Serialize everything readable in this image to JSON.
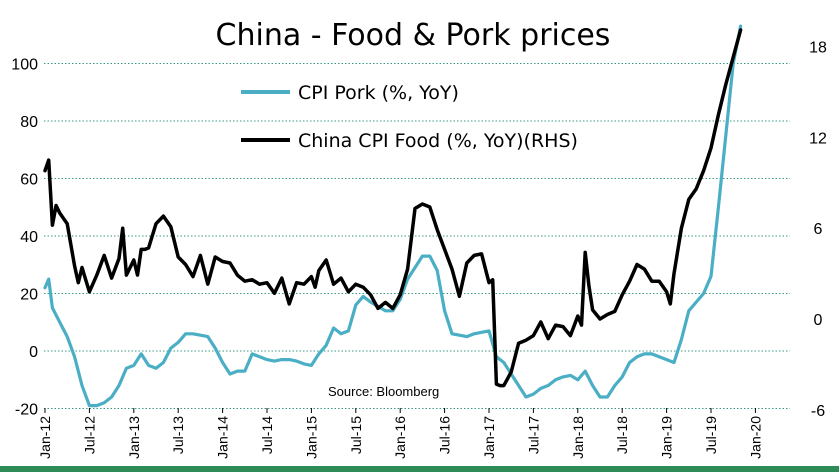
{
  "chart_data": {
    "type": "line",
    "title": "China - Food & Pork prices",
    "source": "Source: Bloomberg",
    "grid": true,
    "bottom_band_color": "#2e8b57",
    "legend": {
      "placement": "top-center",
      "entries": [
        "CPI Pork (%, YoY)",
        "China CPI Food (%, YoY)(RHS)"
      ]
    },
    "x_ticks": [
      "Jan-12",
      "Jul-12",
      "Jan-13",
      "Jul-13",
      "Jan-14",
      "Jul-14",
      "Jan-15",
      "Jul-15",
      "Jan-16",
      "Jul-16",
      "Jan-17",
      "Jul-17",
      "Jan-18",
      "Jul-18",
      "Jan-19",
      "Jul-19",
      "Jan-20"
    ],
    "y_left": {
      "ticks": [
        "-20",
        "0",
        "20",
        "40",
        "60",
        "80",
        "100"
      ],
      "range": [
        -20,
        120
      ]
    },
    "y_right": {
      "ticks": [
        "-6",
        "0",
        "6",
        "12",
        "18"
      ],
      "range": [
        -6,
        19
      ]
    },
    "series": [
      {
        "name": "CPI Pork (%, YoY)",
        "axis": "left",
        "color": "#4aaec4",
        "x": [
          2012.0,
          2012.042,
          2012.083,
          2012.167,
          2012.25,
          2012.333,
          2012.417,
          2012.5,
          2012.583,
          2012.667,
          2012.75,
          2012.833,
          2012.917,
          2013.0,
          2013.083,
          2013.167,
          2013.25,
          2013.333,
          2013.417,
          2013.5,
          2013.583,
          2013.667,
          2013.75,
          2013.833,
          2013.917,
          2014.0,
          2014.083,
          2014.167,
          2014.25,
          2014.333,
          2014.417,
          2014.5,
          2014.583,
          2014.667,
          2014.75,
          2014.833,
          2014.917,
          2015.0,
          2015.083,
          2015.167,
          2015.25,
          2015.333,
          2015.417,
          2015.5,
          2015.583,
          2015.667,
          2015.75,
          2015.833,
          2015.917,
          2016.0,
          2016.083,
          2016.167,
          2016.25,
          2016.333,
          2016.417,
          2016.5,
          2016.583,
          2016.667,
          2016.75,
          2016.833,
          2016.917,
          2017.0,
          2017.083,
          2017.167,
          2017.25,
          2017.333,
          2017.417,
          2017.5,
          2017.583,
          2017.667,
          2017.75,
          2017.833,
          2017.917,
          2018.0,
          2018.083,
          2018.167,
          2018.25,
          2018.333,
          2018.417,
          2018.5,
          2018.583,
          2018.667,
          2018.75,
          2018.833,
          2018.917,
          2019.0,
          2019.083,
          2019.167,
          2019.25,
          2019.333,
          2019.417,
          2019.5,
          2019.583,
          2019.667,
          2019.75,
          2019.833
        ],
        "values": [
          22,
          25,
          15,
          10,
          5,
          -2,
          -12,
          -19,
          -19,
          -18,
          -16,
          -12,
          -6,
          -5,
          -1,
          -5,
          -6,
          -4,
          1,
          3,
          6,
          6,
          5.5,
          5,
          1,
          -4,
          -8,
          -7,
          -7,
          -1,
          -2,
          -3,
          -3.5,
          -3,
          -3,
          -3.5,
          -4.5,
          -5,
          -1,
          2,
          8,
          6,
          7,
          16,
          19,
          17,
          15.5,
          14,
          14,
          18,
          25,
          29,
          33,
          33,
          28,
          14,
          6,
          5.5,
          5,
          6,
          6.5,
          7,
          -2,
          -4,
          -8,
          -12,
          -16,
          -15,
          -13,
          -12,
          -10,
          -9,
          -8.5,
          -10,
          -7,
          -12,
          -16,
          -16,
          -12,
          -9,
          -4,
          -2,
          -1,
          -1,
          -2,
          -3,
          -4,
          4,
          14,
          17,
          20,
          26,
          50,
          75,
          100,
          113
        ]
      },
      {
        "name": "China CPI Food (%, YoY)(RHS)",
        "axis": "right",
        "color": "#000000",
        "x": [
          2012.0,
          2012.042,
          2012.083,
          2012.125,
          2012.167,
          2012.25,
          2012.333,
          2012.375,
          2012.417,
          2012.458,
          2012.5,
          2012.583,
          2012.667,
          2012.75,
          2012.833,
          2012.875,
          2012.917,
          2013.0,
          2013.042,
          2013.083,
          2013.125,
          2013.167,
          2013.25,
          2013.333,
          2013.417,
          2013.5,
          2013.583,
          2013.667,
          2013.75,
          2013.833,
          2013.917,
          2014.0,
          2014.083,
          2014.167,
          2014.25,
          2014.333,
          2014.417,
          2014.5,
          2014.583,
          2014.667,
          2014.75,
          2014.833,
          2014.917,
          2015.0,
          2015.042,
          2015.083,
          2015.167,
          2015.25,
          2015.333,
          2015.417,
          2015.5,
          2015.583,
          2015.667,
          2015.75,
          2015.833,
          2015.917,
          2016.0,
          2016.083,
          2016.167,
          2016.25,
          2016.333,
          2016.417,
          2016.5,
          2016.583,
          2016.667,
          2016.75,
          2016.833,
          2016.917,
          2017.0,
          2017.042,
          2017.083,
          2017.125,
          2017.167,
          2017.25,
          2017.333,
          2017.417,
          2017.5,
          2017.583,
          2017.667,
          2017.75,
          2017.833,
          2017.917,
          2018.0,
          2018.042,
          2018.083,
          2018.125,
          2018.167,
          2018.25,
          2018.333,
          2018.417,
          2018.5,
          2018.583,
          2018.667,
          2018.75,
          2018.833,
          2018.917,
          2019.0,
          2019.042,
          2019.083,
          2019.125,
          2019.167,
          2019.25,
          2019.333,
          2019.417,
          2019.5,
          2019.583,
          2019.667,
          2019.75,
          2019.833
        ],
        "values": [
          9.8,
          10.5,
          6.2,
          7.5,
          7,
          6.3,
          3.5,
          2.4,
          3.4,
          2.6,
          1.8,
          2.9,
          4.2,
          2.7,
          4,
          6,
          2.9,
          3.9,
          2.9,
          4.6,
          4.6,
          4.7,
          6.3,
          6.8,
          6.1,
          4.1,
          3.6,
          2.8,
          4.2,
          2.3,
          4.1,
          3.8,
          3.7,
          2.9,
          2.5,
          2.6,
          2.3,
          2.4,
          1.7,
          2.7,
          1,
          2.4,
          2.3,
          2.8,
          2.1,
          3.2,
          3.9,
          2.3,
          2.7,
          1.8,
          2.3,
          2.1,
          1.6,
          0.7,
          1.1,
          0.7,
          1.6,
          3.3,
          7.3,
          7.6,
          7.4,
          5.9,
          4.6,
          3.3,
          1.5,
          3.7,
          4.2,
          4.3,
          2.4,
          2.6,
          -4.3,
          -4.4,
          -4.4,
          -3.5,
          -1.6,
          -1.4,
          -1.1,
          -0.2,
          -1.3,
          -0.4,
          -0.5,
          -1.1,
          0.2,
          -0.4,
          4.4,
          2.2,
          0.6,
          0,
          0.3,
          0.5,
          1.6,
          2.5,
          3.6,
          3.3,
          2.5,
          2.5,
          1.8,
          1,
          3,
          4.5,
          6,
          7.9,
          8.6,
          9.8,
          11.3,
          13.5,
          15.5,
          17.3,
          19.1
        ]
      }
    ]
  }
}
